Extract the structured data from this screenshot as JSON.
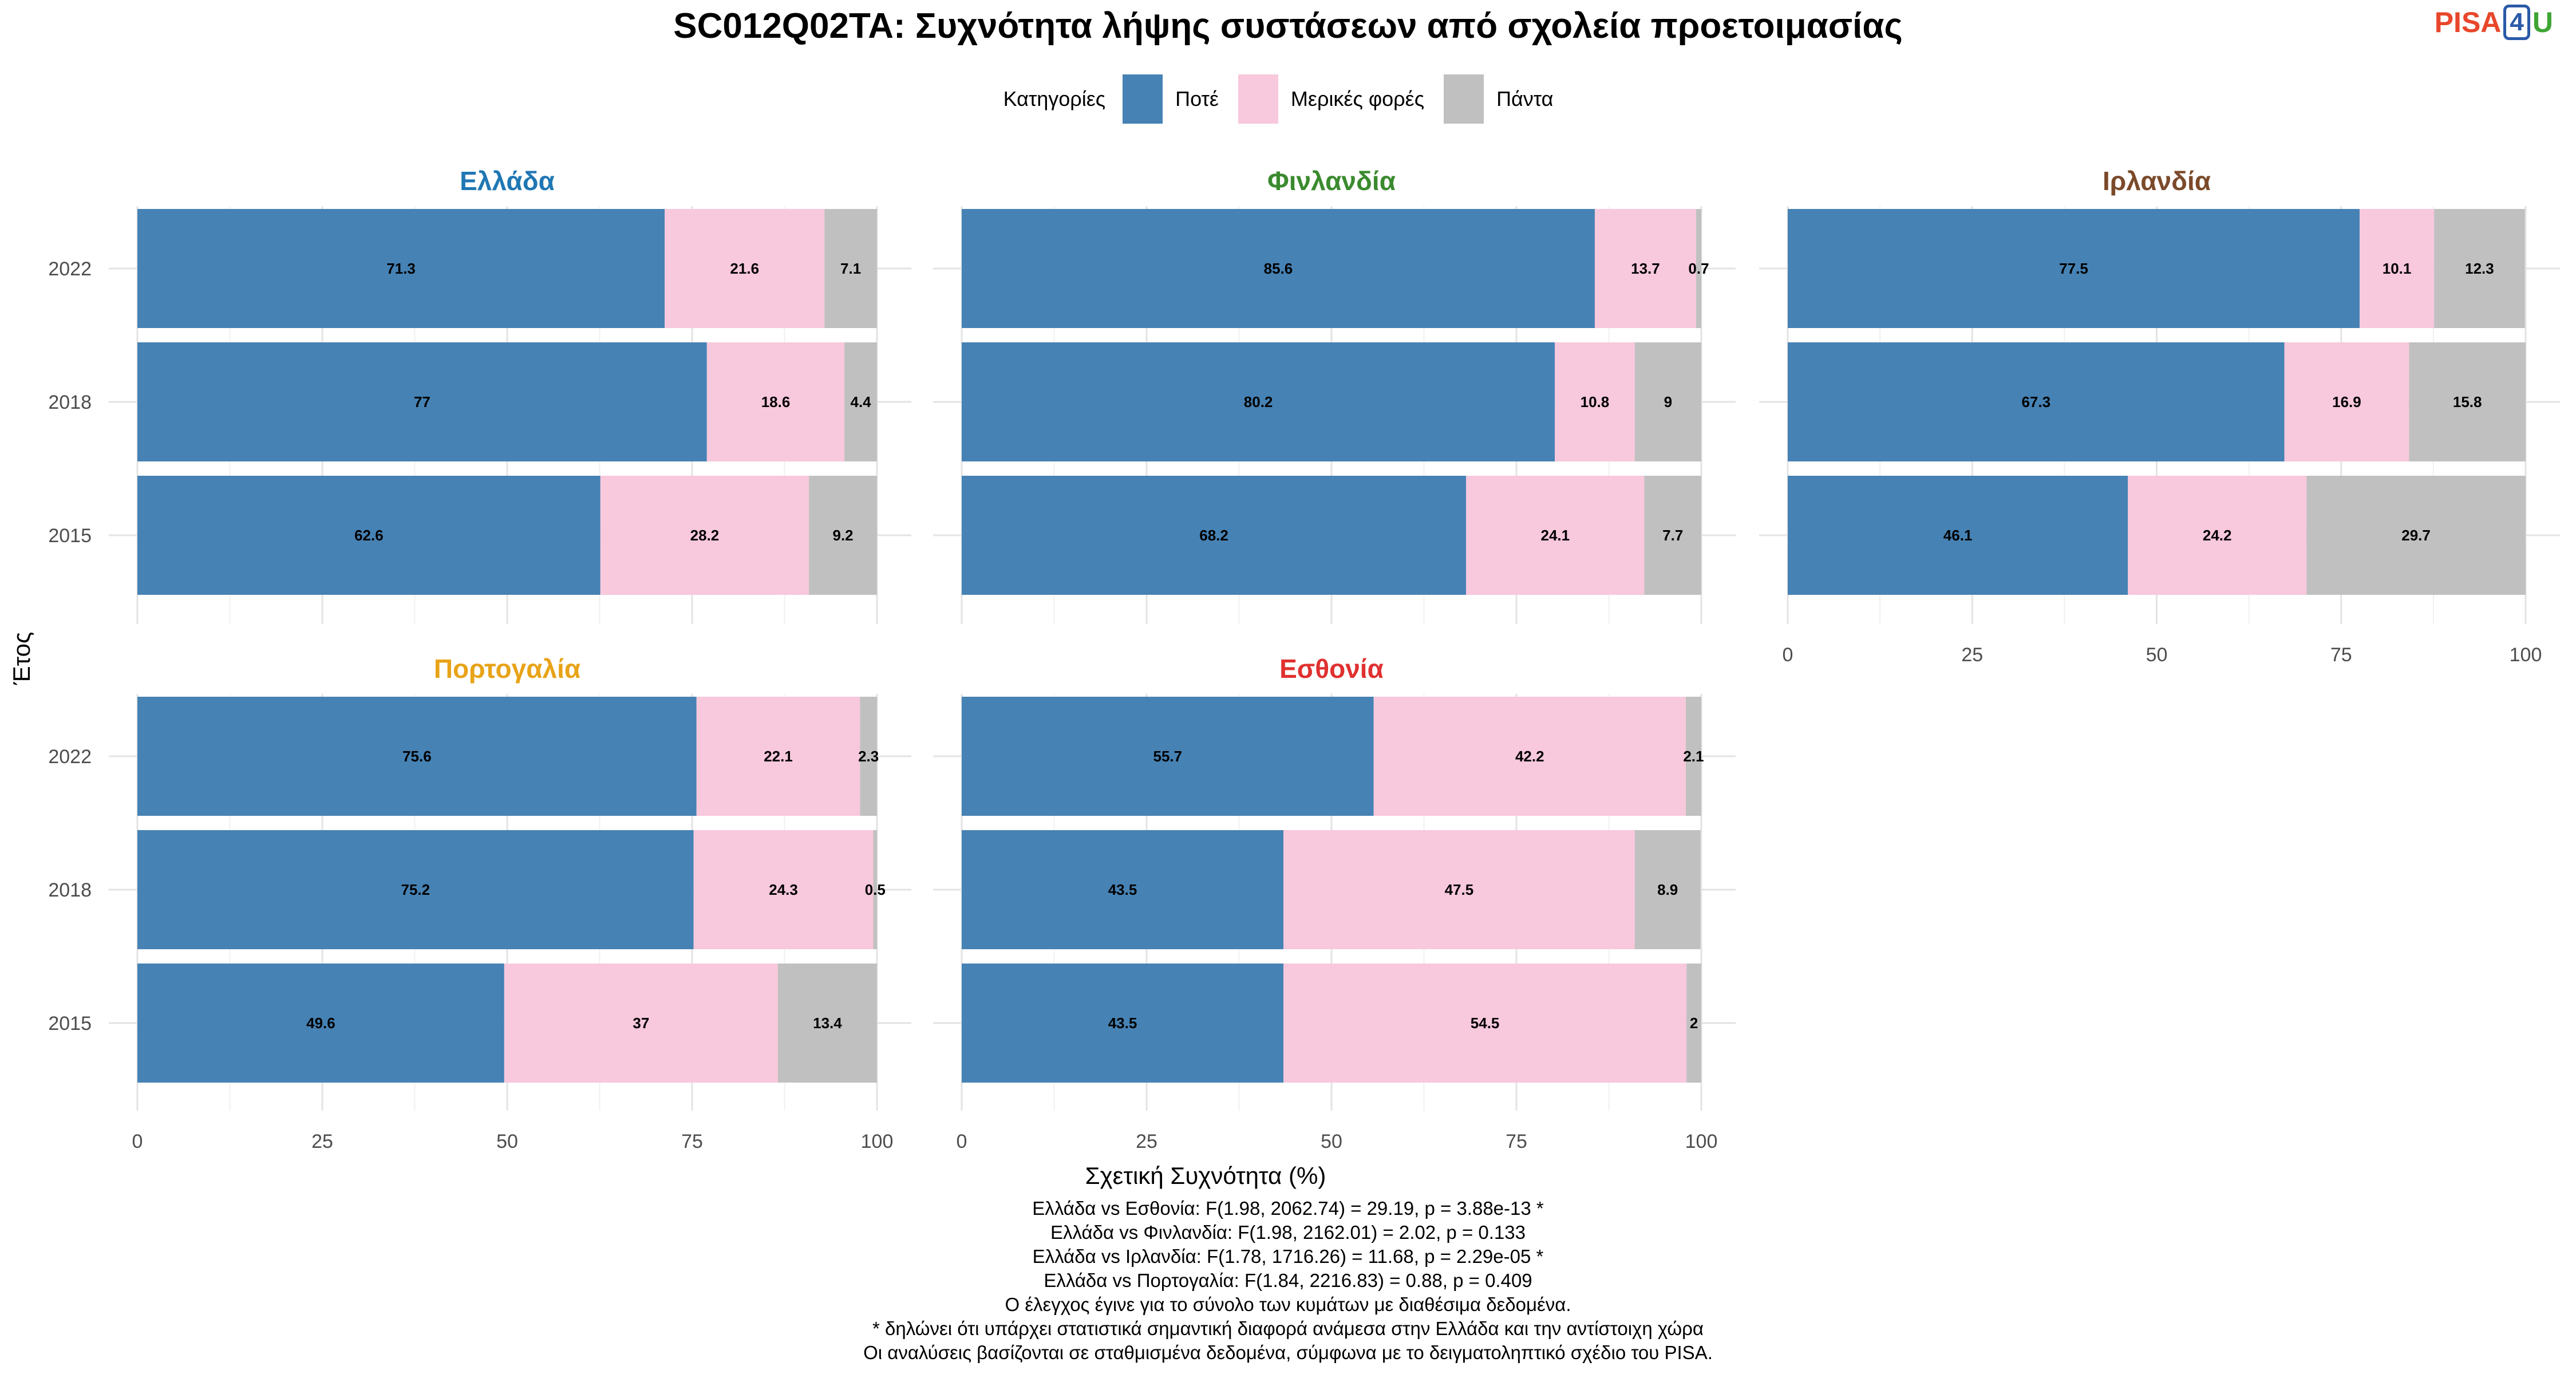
{
  "title": "SC012Q02TA: Συχνότητα λήψης συστάσεων από σχολεία προετοιμασίας",
  "logo": {
    "part1": "PISA",
    "part2": "4",
    "part3": "U"
  },
  "legend": {
    "title": "Κατηγορίες",
    "items": [
      {
        "label": "Ποτέ",
        "color": "#4682b4"
      },
      {
        "label": "Μερικές φορές",
        "color": "#f8c8dc"
      },
      {
        "label": "Πάντα",
        "color": "#c0c0c0"
      }
    ]
  },
  "chart_data": {
    "type": "bar",
    "orientation": "horizontal-stacked",
    "xlabel": "Σχετική Συχνότητα (%)",
    "ylabel": "Έτος",
    "xlim": [
      0,
      100
    ],
    "xticks": [
      0,
      25,
      50,
      75,
      100
    ],
    "categories": [
      "2022",
      "2018",
      "2015"
    ],
    "panels": [
      {
        "country": "Ελλάδα",
        "color": "#1f77b4",
        "series": [
          {
            "name": "Ποτέ",
            "values": [
              71.3,
              77,
              62.6
            ]
          },
          {
            "name": "Μερικές φορές",
            "values": [
              21.6,
              18.6,
              28.2
            ]
          },
          {
            "name": "Πάντα",
            "values": [
              7.1,
              4.4,
              9.2
            ]
          }
        ]
      },
      {
        "country": "Φινλανδία",
        "color": "#3a8a2e",
        "series": [
          {
            "name": "Ποτέ",
            "values": [
              85.6,
              80.2,
              68.2
            ]
          },
          {
            "name": "Μερικές φορές",
            "values": [
              13.7,
              10.8,
              24.1
            ]
          },
          {
            "name": "Πάντα",
            "values": [
              0.7,
              9,
              7.7
            ]
          }
        ]
      },
      {
        "country": "Ιρλανδία",
        "color": "#7b4a2a",
        "series": [
          {
            "name": "Ποτέ",
            "values": [
              77.5,
              67.3,
              46.1
            ]
          },
          {
            "name": "Μερικές φορές",
            "values": [
              10.1,
              16.9,
              24.2
            ]
          },
          {
            "name": "Πάντα",
            "values": [
              12.3,
              15.8,
              29.7
            ]
          }
        ]
      },
      {
        "country": "Πορτογαλία",
        "color": "#e8a317",
        "series": [
          {
            "name": "Ποτέ",
            "values": [
              75.6,
              75.2,
              49.6
            ]
          },
          {
            "name": "Μερικές φορές",
            "values": [
              22.1,
              24.3,
              37
            ]
          },
          {
            "name": "Πάντα",
            "values": [
              2.3,
              0.5,
              13.4
            ]
          }
        ]
      },
      {
        "country": "Εσθονία",
        "color": "#e03030",
        "series": [
          {
            "name": "Ποτέ",
            "values": [
              55.7,
              43.5,
              43.5
            ]
          },
          {
            "name": "Μερικές φορές",
            "values": [
              42.2,
              47.5,
              54.5
            ]
          },
          {
            "name": "Πάντα",
            "values": [
              2.1,
              8.9,
              2
            ]
          }
        ]
      }
    ]
  },
  "notes": [
    "Ελλάδα vs Εσθονία: F(1.98, 2062.74) = 29.19, p = 3.88e-13 *",
    "Ελλάδα vs Φινλανδία: F(1.98, 2162.01) = 2.02, p = 0.133",
    "Ελλάδα vs Ιρλανδία: F(1.78, 1716.26) = 11.68, p = 2.29e-05 *",
    "Ελλάδα vs Πορτογαλία: F(1.84, 2216.83) = 0.88, p = 0.409",
    "Ο έλεγχος έγινε για το σύνολο των κυμάτων με διαθέσιμα δεδομένα.",
    "* δηλώνει ότι υπάρχει στατιστικά σημαντική διαφορά ανάμεσα στην Ελλάδα και την αντίστοιχη χώρα",
    "Οι αναλύσεις βασίζονται σε σταθμισμένα δεδομένα, σύμφωνα με το δειγματοληπτικό σχέδιο του PISA."
  ]
}
